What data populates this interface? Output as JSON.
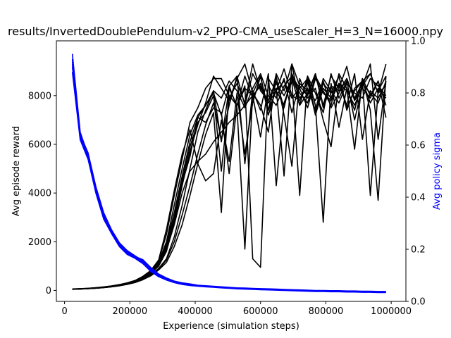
{
  "chart_data": {
    "type": "line",
    "title": "results/InvertedDoublePendulum-v2_PPO-CMA_useScaler_H=3_N=16000.npy",
    "xlabel": "Experience (simulation steps)",
    "ylabel": "Avg episode reward",
    "y2label": "Avg policy sigma",
    "xlim": [
      -25000,
      1045000
    ],
    "ylim": [
      -450,
      10250
    ],
    "y2lim": [
      0,
      1
    ],
    "x_ticks": [
      0,
      200000,
      400000,
      600000,
      800000,
      1000000
    ],
    "y_ticks": [
      0,
      2000,
      4000,
      6000,
      8000
    ],
    "y2_ticks": [
      0.0,
      0.2,
      0.4,
      0.6,
      0.8,
      1.0
    ],
    "grid": false,
    "colors": {
      "reward": "#000000",
      "sigma": "#0000ff",
      "y2label": "#0000ff"
    },
    "x": [
      24000,
      48000,
      72000,
      96000,
      120000,
      144000,
      168000,
      192000,
      216000,
      240000,
      264000,
      288000,
      312000,
      336000,
      360000,
      384000,
      408000,
      432000,
      456000,
      480000,
      504000,
      528000,
      552000,
      576000,
      600000,
      624000,
      648000,
      672000,
      696000,
      720000,
      744000,
      768000,
      792000,
      816000,
      840000,
      864000,
      888000,
      912000,
      936000,
      960000,
      984000
    ],
    "reward_series": [
      {
        "values": [
          60,
          70,
          85,
          110,
          140,
          180,
          230,
          300,
          400,
          560,
          800,
          1200,
          2300,
          3900,
          5400,
          6900,
          7500,
          8300,
          8700,
          8700,
          8000,
          7600,
          8800,
          7900,
          8500,
          7400,
          8200,
          9100,
          8000,
          7800,
          8600,
          7200,
          8300,
          7900,
          8800,
          7500,
          8200,
          8600,
          7700,
          8300,
          7900
        ]
      },
      {
        "values": [
          55,
          65,
          80,
          100,
          130,
          170,
          220,
          290,
          380,
          520,
          740,
          1100,
          1900,
          3200,
          4700,
          6100,
          7100,
          7600,
          8100,
          7200,
          8400,
          8800,
          7600,
          8900,
          8300,
          7800,
          8500,
          8000,
          8700,
          7600,
          8100,
          8900,
          7500,
          8400,
          8200,
          8700,
          7900,
          8500,
          8100,
          7700,
          8600
        ]
      },
      {
        "values": [
          50,
          62,
          78,
          98,
          125,
          160,
          210,
          270,
          360,
          490,
          690,
          1000,
          1600,
          2800,
          4300,
          5700,
          6800,
          7700,
          8800,
          8300,
          7800,
          8700,
          9300,
          8100,
          8800,
          7400,
          8900,
          8200,
          9300,
          8400,
          8000,
          8900,
          7600,
          8800,
          8300,
          9200,
          7800,
          8600,
          8900,
          8100,
          9300
        ]
      },
      {
        "values": [
          58,
          68,
          82,
          105,
          135,
          175,
          225,
          295,
          390,
          540,
          770,
          1150,
          2000,
          3500,
          5000,
          6400,
          7200,
          7600,
          8200,
          7900,
          8600,
          8200,
          7500,
          8300,
          8900,
          8000,
          7600,
          8400,
          8800,
          7900,
          8300,
          7400,
          8700,
          8200,
          7700,
          8500,
          8100,
          7900,
          8700,
          8400,
          8000
        ]
      },
      {
        "values": [
          52,
          60,
          75,
          95,
          120,
          155,
          200,
          260,
          340,
          460,
          640,
          900,
          1300,
          2200,
          3500,
          5000,
          6500,
          7400,
          8200,
          6100,
          8300,
          7600,
          8400,
          1300,
          950,
          8700,
          8200,
          7600,
          8800,
          8300,
          8700,
          7300,
          8500,
          8100,
          8800,
          7400,
          8300,
          8600,
          3900,
          8200,
          8800
        ]
      },
      {
        "values": [
          48,
          58,
          72,
          92,
          118,
          150,
          195,
          255,
          330,
          450,
          620,
          870,
          1250,
          2000,
          3100,
          4300,
          5600,
          6800,
          7700,
          6200,
          7600,
          8800,
          5200,
          8200,
          7400,
          8900,
          4300,
          7700,
          8600,
          3900,
          8800,
          7600,
          2800,
          8500,
          6700,
          8300,
          5800,
          8700,
          7400,
          3700,
          8800
        ]
      },
      {
        "values": [
          45,
          55,
          70,
          90,
          115,
          148,
          190,
          250,
          325,
          440,
          600,
          840,
          1150,
          1800,
          2700,
          3900,
          5200,
          6400,
          7300,
          3200,
          8400,
          7500,
          1700,
          8100,
          7600,
          6500,
          8800,
          7200,
          5100,
          8700,
          7900,
          8300,
          7000,
          5900,
          8500,
          7600,
          8900,
          6200,
          8200,
          7900,
          8500
        ]
      },
      {
        "values": [
          56,
          66,
          80,
          102,
          132,
          168,
          218,
          285,
          375,
          510,
          720,
          1050,
          1800,
          3000,
          4500,
          5900,
          6900,
          7300,
          8000,
          4900,
          7900,
          8500,
          7700,
          9300,
          8200,
          7800,
          8600,
          7500,
          8900,
          8100,
          7700,
          8800,
          8200,
          7600,
          8900,
          8300,
          7400,
          8700,
          8000,
          8600,
          7100
        ]
      },
      {
        "values": [
          62,
          72,
          88,
          112,
          145,
          185,
          240,
          310,
          410,
          580,
          820,
          1250,
          2500,
          4100,
          5600,
          6600,
          5200,
          4500,
          4800,
          7000,
          5300,
          8100,
          5600,
          7700,
          8800,
          7200,
          8300,
          4700,
          9300,
          7600,
          8800,
          8100,
          7300,
          8900,
          7900,
          8600,
          7000,
          8400,
          9300,
          6200,
          8600
        ]
      },
      {
        "values": [
          54,
          64,
          79,
          101,
          128,
          165,
          214,
          280,
          370,
          500,
          710,
          1020,
          1700,
          2900,
          4400,
          5500,
          7100,
          6900,
          7500,
          7300,
          4800,
          7600,
          8300,
          8000,
          6300,
          8400,
          7900,
          8700,
          7300,
          8500,
          8200,
          7800,
          8600,
          7500,
          8100,
          8700,
          7800,
          8300,
          7900,
          8600,
          7600
        ]
      },
      {
        "values": [
          53,
          63,
          77,
          99,
          127,
          163,
          212,
          278,
          365,
          495,
          700,
          1000,
          1650,
          2700,
          4000,
          4900,
          5300,
          5600,
          6100,
          6500,
          6900,
          7200,
          7600,
          8000,
          8400,
          7700,
          8200,
          8600,
          7900,
          8300,
          7500,
          8700,
          8100,
          7800,
          8500,
          8200,
          7600,
          8400,
          8900,
          8100,
          8400
        ]
      }
    ],
    "sigma_series": [
      {
        "values": [
          0.95,
          0.65,
          0.56,
          0.43,
          0.33,
          0.27,
          0.22,
          0.19,
          0.17,
          0.15,
          0.12,
          0.1,
          0.085,
          0.075,
          0.068,
          0.064,
          0.06,
          0.058,
          0.056,
          0.054,
          0.052,
          0.05,
          0.049,
          0.048,
          0.047,
          0.046,
          0.045,
          0.044,
          0.043,
          0.042,
          0.041,
          0.04,
          0.04,
          0.039,
          0.039,
          0.038,
          0.038,
          0.037,
          0.037,
          0.036,
          0.036
        ]
      },
      {
        "values": [
          0.93,
          0.64,
          0.57,
          0.44,
          0.34,
          0.275,
          0.225,
          0.195,
          0.175,
          0.155,
          0.125,
          0.102,
          0.088,
          0.077,
          0.07,
          0.066,
          0.061,
          0.059,
          0.057,
          0.055,
          0.053,
          0.051,
          0.05,
          0.049,
          0.048,
          0.047,
          0.046,
          0.045,
          0.044,
          0.043,
          0.042,
          0.041,
          0.041,
          0.04,
          0.04,
          0.039,
          0.039,
          0.038,
          0.038,
          0.037,
          0.037
        ]
      },
      {
        "values": [
          0.9,
          0.63,
          0.55,
          0.42,
          0.32,
          0.265,
          0.215,
          0.185,
          0.168,
          0.148,
          0.118,
          0.097,
          0.083,
          0.073,
          0.066,
          0.062,
          0.059,
          0.057,
          0.055,
          0.053,
          0.051,
          0.049,
          0.048,
          0.047,
          0.046,
          0.045,
          0.044,
          0.043,
          0.042,
          0.041,
          0.04,
          0.039,
          0.039,
          0.038,
          0.038,
          0.037,
          0.037,
          0.036,
          0.036,
          0.035,
          0.035
        ]
      },
      {
        "values": [
          0.88,
          0.62,
          0.545,
          0.415,
          0.315,
          0.26,
          0.21,
          0.18,
          0.165,
          0.145,
          0.115,
          0.095,
          0.082,
          0.072,
          0.065,
          0.061,
          0.058,
          0.056,
          0.054,
          0.052,
          0.05,
          0.048,
          0.047,
          0.046,
          0.045,
          0.044,
          0.043,
          0.042,
          0.041,
          0.04,
          0.039,
          0.038,
          0.038,
          0.037,
          0.037,
          0.036,
          0.036,
          0.035,
          0.035,
          0.034,
          0.034
        ]
      },
      {
        "values": [
          0.92,
          0.645,
          0.565,
          0.435,
          0.335,
          0.272,
          0.222,
          0.19,
          0.172,
          0.16,
          0.13,
          0.105,
          0.09,
          0.078,
          0.071,
          0.067,
          0.062,
          0.06,
          0.058,
          0.056,
          0.054,
          0.052,
          0.051,
          0.05,
          0.049,
          0.048,
          0.047,
          0.046,
          0.045,
          0.044,
          0.043,
          0.042,
          0.042,
          0.041,
          0.041,
          0.04,
          0.04,
          0.039,
          0.039,
          0.038,
          0.038
        ]
      },
      {
        "values": [
          0.91,
          0.635,
          0.56,
          0.425,
          0.325,
          0.268,
          0.218,
          0.188,
          0.17,
          0.152,
          0.122,
          0.1,
          0.086,
          0.076,
          0.069,
          0.065,
          0.06,
          0.058,
          0.056,
          0.054,
          0.052,
          0.05,
          0.049,
          0.048,
          0.047,
          0.046,
          0.045,
          0.044,
          0.043,
          0.042,
          0.041,
          0.04,
          0.04,
          0.039,
          0.039,
          0.038,
          0.038,
          0.037,
          0.037,
          0.036,
          0.036
        ]
      }
    ]
  }
}
